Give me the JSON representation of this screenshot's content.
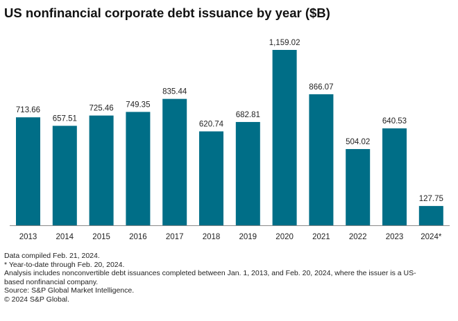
{
  "chart_data": {
    "type": "bar",
    "title": "US nonfinancial corporate debt issuance by year ($B)",
    "xlabel": "",
    "ylabel": "",
    "categories": [
      "2013",
      "2014",
      "2015",
      "2016",
      "2017",
      "2018",
      "2019",
      "2020",
      "2021",
      "2022",
      "2023",
      "2024*"
    ],
    "values": [
      713.66,
      657.51,
      725.46,
      749.35,
      835.44,
      620.74,
      682.81,
      1159.02,
      866.07,
      504.02,
      640.53,
      127.75
    ],
    "labels": [
      "713.66",
      "657.51",
      "725.46",
      "749.35",
      "835.44",
      "620.74",
      "682.81",
      "1,159.02",
      "866.07",
      "504.02",
      "640.53",
      "127.75"
    ],
    "ylim": [
      0,
      1159.02
    ],
    "grid": false,
    "bar_color": "#006e87"
  },
  "notes": [
    "Data compiled Feb. 21, 2024.",
    "* Year-to-date through Feb. 20, 2024.",
    "Analysis includes nonconvertible debt issuances completed between Jan. 1, 2013, and Feb. 20, 2024, where the issuer is a US-based nonfinancial company.",
    "Source: S&P Global Market Intelligence.",
    "© 2024 S&P Global."
  ]
}
